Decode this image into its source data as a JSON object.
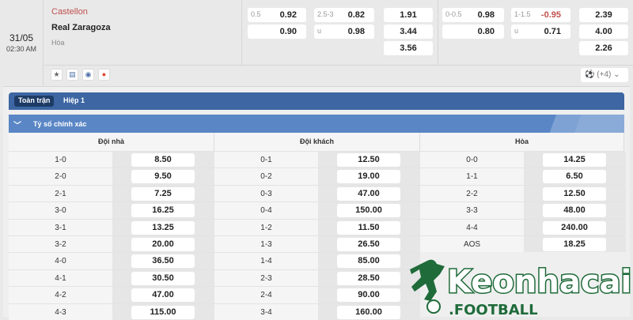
{
  "match": {
    "date": "31/05",
    "time": "02:30 AM",
    "home": "Castellon",
    "away": "Real Zaragoza",
    "draw": "Hòa"
  },
  "odds": {
    "ft_hdp": {
      "line": "0.5",
      "home": "0.92",
      "away": "0.90"
    },
    "ft_ou": {
      "line": "2.5-3",
      "over": "0.82",
      "under_label": "u",
      "under": "0.98"
    },
    "ft_1x2": [
      "1.91",
      "3.44",
      "3.56"
    ],
    "h1_hdp": {
      "line": "0-0.5",
      "home": "0.98",
      "away": "0.80"
    },
    "h1_ou": {
      "line": "1-1.5",
      "over": "-0.95",
      "under_label": "u",
      "under": "0.71"
    },
    "h1_1x2": [
      "2.39",
      "4.00",
      "2.26"
    ]
  },
  "more": {
    "label": "(+4)"
  },
  "tabs": [
    {
      "label": "Toàn trận",
      "active": true
    },
    {
      "label": "Hiệp 1",
      "active": false
    }
  ],
  "section": {
    "title": "Tỷ số chính xác"
  },
  "columns": [
    {
      "header": "Đội nhà",
      "rows": [
        [
          "1-0",
          "8.50"
        ],
        [
          "2-0",
          "9.50"
        ],
        [
          "2-1",
          "7.25"
        ],
        [
          "3-0",
          "16.25"
        ],
        [
          "3-1",
          "13.25"
        ],
        [
          "3-2",
          "20.00"
        ],
        [
          "4-0",
          "36.50"
        ],
        [
          "4-1",
          "30.50"
        ],
        [
          "4-2",
          "47.00"
        ],
        [
          "4-3",
          "115.00"
        ]
      ]
    },
    {
      "header": "Đội khách",
      "rows": [
        [
          "0-1",
          "12.50"
        ],
        [
          "0-2",
          "19.00"
        ],
        [
          "0-3",
          "47.00"
        ],
        [
          "0-4",
          "150.00"
        ],
        [
          "1-2",
          "11.50"
        ],
        [
          "1-3",
          "26.50"
        ],
        [
          "1-4",
          "85.00"
        ],
        [
          "2-3",
          "28.50"
        ],
        [
          "2-4",
          "90.00"
        ],
        [
          "3-4",
          "160.00"
        ]
      ]
    },
    {
      "header": "Hòa",
      "rows": [
        [
          "0-0",
          "14.25"
        ],
        [
          "1-1",
          "6.50"
        ],
        [
          "2-2",
          "12.50"
        ],
        [
          "3-3",
          "48.00"
        ],
        [
          "4-4",
          "240.00"
        ],
        [
          "AOS",
          "18.25"
        ]
      ]
    }
  ],
  "watermark": {
    "text": "Keonhacai",
    "sub": ".FOOTBALL"
  },
  "colors": {
    "tabbar": "#3d66a3",
    "subheader": "#5a86c5",
    "home": "#c0504d",
    "logo": "#1f6b3a"
  }
}
